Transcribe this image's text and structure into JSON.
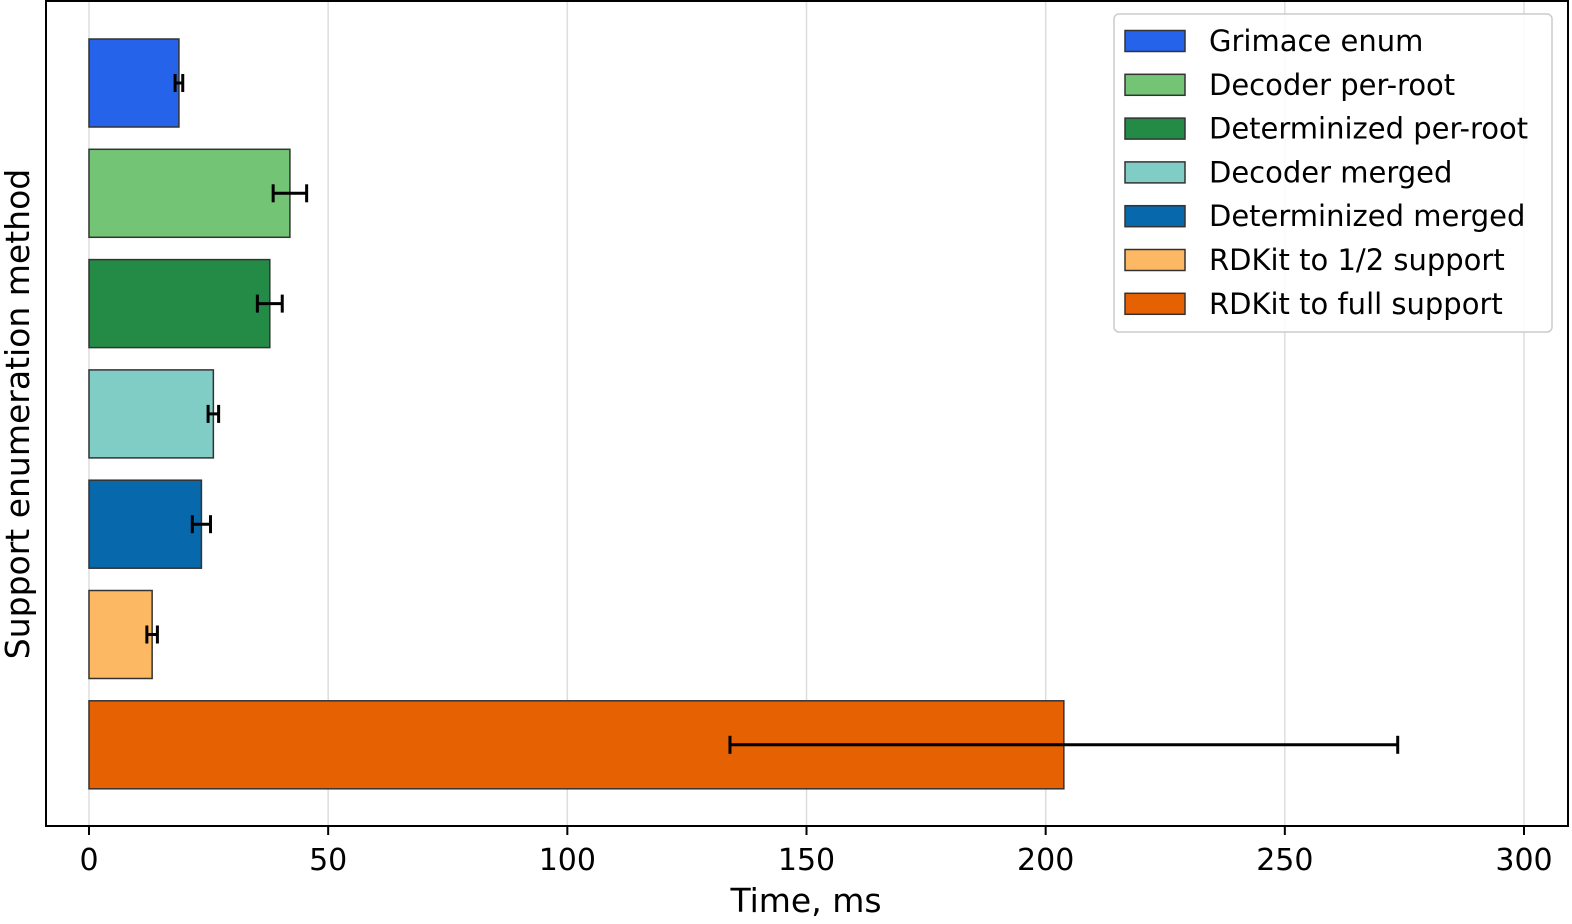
{
  "chart_data": {
    "type": "bar",
    "orientation": "horizontal",
    "title": "",
    "xlabel": "Time, ms",
    "ylabel": "Support enumeration method",
    "xlim": [
      -9,
      303
    ],
    "xticks": [
      0,
      50,
      100,
      150,
      200,
      250,
      300
    ],
    "grid": "vertical",
    "legend_position": "top-right",
    "series": [
      {
        "name": "Grimace enum",
        "value": 18.8,
        "error": 0.8,
        "color": "#2563eb"
      },
      {
        "name": "Decoder per-root",
        "value": 42.0,
        "error": 3.5,
        "color": "#74c476"
      },
      {
        "name": "Determinized per-root",
        "value": 37.8,
        "error": 2.6,
        "color": "#238b45"
      },
      {
        "name": "Decoder merged",
        "value": 26.0,
        "error": 1.1,
        "color": "#7fcdc4"
      },
      {
        "name": "Determinized merged",
        "value": 23.5,
        "error": 1.9,
        "color": "#0868ac"
      },
      {
        "name": "RDKit to 1/2 support",
        "value": 13.2,
        "error": 1.1,
        "color": "#fdb863"
      },
      {
        "name": "RDKit to full support",
        "value": 203.8,
        "error": 69.8,
        "color": "#e66101"
      }
    ]
  }
}
